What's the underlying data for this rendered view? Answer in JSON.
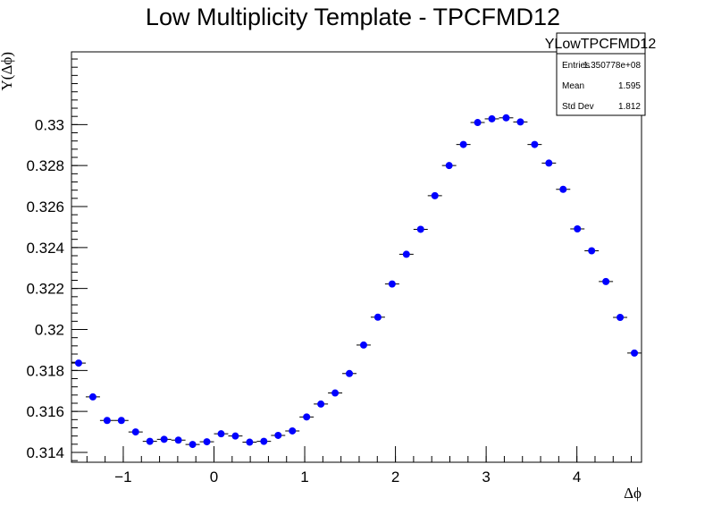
{
  "chart_data": {
    "type": "scatter",
    "title": "Low Multiplicity Template - TPCFMD12",
    "xlabel": "Δϕ",
    "ylabel": "Y(Δϕ)",
    "xlim": [
      -1.5708,
      4.7124
    ],
    "ylim": [
      0.31352,
      0.33355
    ],
    "x_ticks": [
      -1,
      0,
      1,
      2,
      3,
      4
    ],
    "y_ticks": [
      0.314,
      0.316,
      0.318,
      0.32,
      0.322,
      0.324,
      0.326,
      0.328,
      0.33
    ],
    "y_tick_labels": [
      "0.314",
      "0.316",
      "0.318",
      "0.32",
      "0.322",
      "0.324",
      "0.326",
      "0.328",
      "0.33"
    ],
    "x_tick_labels": [
      "−1",
      "0",
      "1",
      "2",
      "3",
      "4"
    ],
    "grid": false,
    "marker_color": "#0000ff",
    "series": [
      {
        "x_start": -1.5708,
        "bin_width": 0.15708,
        "values": [
          0.31836,
          0.31671,
          0.31556,
          0.31556,
          0.315,
          0.31454,
          0.31464,
          0.3146,
          0.31439,
          0.31452,
          0.31491,
          0.3148,
          0.3145,
          0.31454,
          0.31483,
          0.31505,
          0.31573,
          0.31636,
          0.3169,
          0.31785,
          0.31924,
          0.3206,
          0.32222,
          0.32367,
          0.32489,
          0.32653,
          0.328,
          0.32903,
          0.3301,
          0.33028,
          0.33033,
          0.33013,
          0.32903,
          0.32812,
          0.32684,
          0.32491,
          0.32384,
          0.32234,
          0.32059,
          0.31885
        ]
      }
    ]
  },
  "stats_box": {
    "name": "YLowTPCFMD12",
    "rows": [
      {
        "label": "Entries",
        "value": "1.350778e+08"
      },
      {
        "label": "Mean",
        "value": "1.595"
      },
      {
        "label": "Std Dev",
        "value": "1.812"
      }
    ]
  }
}
